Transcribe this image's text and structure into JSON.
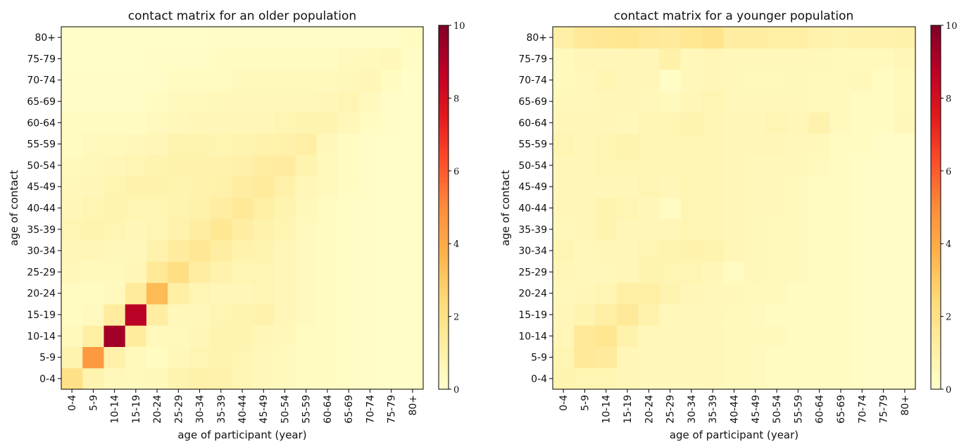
{
  "chart_data": [
    {
      "type": "heatmap",
      "title": "contact matrix for an older population",
      "xlabel": "age of participant (year)",
      "ylabel": "age of contact",
      "x_categories": [
        "0-4",
        "5-9",
        "10-14",
        "15-19",
        "20-24",
        "25-29",
        "30-34",
        "35-39",
        "40-44",
        "45-49",
        "50-54",
        "55-59",
        "60-64",
        "65-69",
        "70-74",
        "75-79",
        "80+"
      ],
      "y_categories": [
        "0-4",
        "5-9",
        "10-14",
        "15-19",
        "20-24",
        "25-29",
        "30-34",
        "35-39",
        "40-44",
        "45-49",
        "50-54",
        "55-59",
        "60-64",
        "65-69",
        "70-74",
        "75-79",
        "80+"
      ],
      "colorbar": {
        "min": 0,
        "max": 10,
        "ticks": [
          0,
          2,
          4,
          6,
          8,
          10
        ],
        "colormap": "YlOrRd"
      },
      "matrix_note": "rows listed from age of contact 0-4 (bottom) to 80+ (top); columns in participant age order",
      "values": [
        [
          2.0,
          0.8,
          0.5,
          0.4,
          0.5,
          0.8,
          1.0,
          0.9,
          0.7,
          0.5,
          0.4,
          0.3,
          0.3,
          0.2,
          0.2,
          0.1,
          0.1
        ],
        [
          0.8,
          4.6,
          1.0,
          0.4,
          0.3,
          0.5,
          0.7,
          0.8,
          0.7,
          0.5,
          0.4,
          0.3,
          0.3,
          0.2,
          0.2,
          0.1,
          0.1
        ],
        [
          0.4,
          1.1,
          9.3,
          1.3,
          0.4,
          0.4,
          0.6,
          0.8,
          0.8,
          0.6,
          0.5,
          0.3,
          0.3,
          0.2,
          0.2,
          0.1,
          0.1
        ],
        [
          0.3,
          0.4,
          1.3,
          8.8,
          1.2,
          0.5,
          0.5,
          0.7,
          0.8,
          0.9,
          0.6,
          0.4,
          0.3,
          0.2,
          0.2,
          0.1,
          0.1
        ],
        [
          0.3,
          0.3,
          0.4,
          1.4,
          3.5,
          1.1,
          0.7,
          0.6,
          0.6,
          0.7,
          0.6,
          0.4,
          0.3,
          0.2,
          0.2,
          0.1,
          0.1
        ],
        [
          0.5,
          0.4,
          0.4,
          0.6,
          1.5,
          2.1,
          1.2,
          0.9,
          0.7,
          0.7,
          0.6,
          0.4,
          0.3,
          0.2,
          0.2,
          0.1,
          0.1
        ],
        [
          0.6,
          0.6,
          0.5,
          0.5,
          0.9,
          1.3,
          1.6,
          1.2,
          0.9,
          0.8,
          0.6,
          0.4,
          0.3,
          0.2,
          0.2,
          0.1,
          0.1
        ],
        [
          0.7,
          0.8,
          0.7,
          0.6,
          0.7,
          0.9,
          1.2,
          1.6,
          1.2,
          0.9,
          0.7,
          0.4,
          0.3,
          0.2,
          0.2,
          0.1,
          0.1
        ],
        [
          0.6,
          0.7,
          0.8,
          0.7,
          0.7,
          0.8,
          1.0,
          1.2,
          1.5,
          1.1,
          0.8,
          0.5,
          0.3,
          0.2,
          0.2,
          0.1,
          0.1
        ],
        [
          0.5,
          0.6,
          0.7,
          0.9,
          0.9,
          0.8,
          0.9,
          1.0,
          1.2,
          1.4,
          1.0,
          0.6,
          0.4,
          0.3,
          0.2,
          0.1,
          0.1
        ],
        [
          0.4,
          0.5,
          0.6,
          0.7,
          0.8,
          0.9,
          0.9,
          0.9,
          1.0,
          1.2,
          1.3,
          0.8,
          0.4,
          0.3,
          0.2,
          0.1,
          0.1
        ],
        [
          0.3,
          0.4,
          0.4,
          0.5,
          0.6,
          0.8,
          0.8,
          0.7,
          0.8,
          0.9,
          1.0,
          1.1,
          0.5,
          0.3,
          0.2,
          0.1,
          0.1
        ],
        [
          0.3,
          0.3,
          0.3,
          0.3,
          0.4,
          0.5,
          0.6,
          0.6,
          0.6,
          0.6,
          0.7,
          0.8,
          0.8,
          0.5,
          0.3,
          0.2,
          0.1
        ],
        [
          0.2,
          0.2,
          0.2,
          0.2,
          0.3,
          0.4,
          0.4,
          0.5,
          0.5,
          0.5,
          0.5,
          0.5,
          0.6,
          0.7,
          0.4,
          0.2,
          0.1
        ],
        [
          0.2,
          0.2,
          0.2,
          0.2,
          0.2,
          0.3,
          0.3,
          0.3,
          0.4,
          0.4,
          0.4,
          0.4,
          0.4,
          0.5,
          0.6,
          0.3,
          0.1
        ],
        [
          0.1,
          0.1,
          0.1,
          0.1,
          0.2,
          0.2,
          0.2,
          0.3,
          0.3,
          0.3,
          0.3,
          0.3,
          0.3,
          0.4,
          0.4,
          0.5,
          0.2
        ],
        [
          0.1,
          0.1,
          0.1,
          0.1,
          0.1,
          0.1,
          0.1,
          0.2,
          0.2,
          0.2,
          0.2,
          0.2,
          0.2,
          0.2,
          0.2,
          0.2,
          0.3
        ]
      ]
    },
    {
      "type": "heatmap",
      "title": "contact matrix for a younger population",
      "xlabel": "age of participant (year)",
      "ylabel": "age of contact",
      "x_categories": [
        "0-4",
        "5-9",
        "10-14",
        "15-19",
        "20-24",
        "25-29",
        "30-34",
        "35-39",
        "40-44",
        "45-49",
        "50-54",
        "55-59",
        "60-64",
        "65-69",
        "70-74",
        "75-79",
        "80+"
      ],
      "y_categories": [
        "0-4",
        "5-9",
        "10-14",
        "15-19",
        "20-24",
        "25-29",
        "30-34",
        "35-39",
        "40-44",
        "45-49",
        "50-54",
        "55-59",
        "60-64",
        "65-69",
        "70-74",
        "75-79",
        "80+"
      ],
      "colorbar": {
        "min": 0,
        "max": 10,
        "ticks": [
          0,
          2,
          4,
          6,
          8,
          10
        ],
        "colormap": "YlOrRd"
      },
      "matrix_note": "rows listed from age of contact 0-4 (bottom) to 80+ (top); columns in participant age order",
      "values": [
        [
          0.8,
          0.7,
          0.7,
          0.6,
          0.5,
          0.5,
          0.5,
          0.5,
          0.4,
          0.4,
          0.3,
          0.3,
          0.3,
          0.3,
          0.2,
          0.2,
          0.2
        ],
        [
          0.7,
          1.5,
          1.4,
          0.6,
          0.5,
          0.5,
          0.5,
          0.5,
          0.4,
          0.4,
          0.3,
          0.3,
          0.3,
          0.3,
          0.2,
          0.2,
          0.2
        ],
        [
          0.6,
          1.5,
          1.7,
          0.9,
          0.5,
          0.5,
          0.5,
          0.5,
          0.4,
          0.4,
          0.4,
          0.3,
          0.3,
          0.3,
          0.2,
          0.2,
          0.2
        ],
        [
          0.6,
          0.8,
          1.1,
          1.5,
          0.9,
          0.5,
          0.5,
          0.5,
          0.4,
          0.4,
          0.3,
          0.3,
          0.3,
          0.3,
          0.2,
          0.2,
          0.2
        ],
        [
          0.5,
          0.6,
          0.7,
          1.1,
          1.1,
          0.8,
          0.6,
          0.5,
          0.5,
          0.4,
          0.4,
          0.3,
          0.3,
          0.3,
          0.2,
          0.2,
          0.2
        ],
        [
          0.6,
          0.5,
          0.5,
          0.6,
          0.8,
          0.7,
          0.7,
          0.6,
          0.3,
          0.5,
          0.4,
          0.4,
          0.3,
          0.3,
          0.2,
          0.2,
          0.2
        ],
        [
          0.7,
          0.5,
          0.6,
          0.6,
          0.7,
          0.8,
          0.9,
          0.8,
          0.6,
          0.5,
          0.4,
          0.4,
          0.3,
          0.3,
          0.2,
          0.2,
          0.2
        ],
        [
          0.5,
          0.6,
          0.8,
          0.6,
          0.6,
          0.6,
          0.7,
          0.7,
          0.6,
          0.5,
          0.4,
          0.4,
          0.3,
          0.3,
          0.2,
          0.2,
          0.2
        ],
        [
          0.6,
          0.6,
          0.8,
          0.7,
          0.6,
          0.3,
          0.7,
          0.7,
          0.6,
          0.5,
          0.5,
          0.4,
          0.3,
          0.3,
          0.2,
          0.2,
          0.2
        ],
        [
          0.6,
          0.6,
          0.6,
          0.6,
          0.7,
          0.6,
          0.7,
          0.7,
          0.6,
          0.5,
          0.5,
          0.4,
          0.3,
          0.3,
          0.2,
          0.2,
          0.2
        ],
        [
          0.6,
          0.6,
          0.7,
          0.7,
          0.7,
          0.7,
          0.7,
          0.7,
          0.6,
          0.5,
          0.5,
          0.5,
          0.4,
          0.3,
          0.2,
          0.2,
          0.2
        ],
        [
          0.7,
          0.6,
          0.7,
          0.8,
          0.7,
          0.7,
          0.7,
          0.7,
          0.6,
          0.6,
          0.6,
          0.5,
          0.5,
          0.3,
          0.3,
          0.2,
          0.2
        ],
        [
          0.6,
          0.6,
          0.6,
          0.5,
          0.7,
          0.7,
          0.8,
          0.7,
          0.6,
          0.6,
          0.7,
          0.6,
          0.9,
          0.4,
          0.3,
          0.3,
          0.5
        ],
        [
          0.5,
          0.5,
          0.6,
          0.6,
          0.5,
          0.4,
          0.6,
          0.7,
          0.5,
          0.5,
          0.5,
          0.5,
          0.4,
          0.4,
          0.3,
          0.3,
          0.4
        ],
        [
          0.4,
          0.5,
          0.7,
          0.6,
          0.6,
          0.2,
          0.5,
          0.6,
          0.5,
          0.4,
          0.4,
          0.5,
          0.4,
          0.4,
          0.5,
          0.3,
          0.4
        ],
        [
          0.4,
          0.6,
          0.6,
          0.6,
          0.6,
          1.0,
          0.5,
          0.6,
          0.5,
          0.5,
          0.5,
          0.5,
          0.5,
          0.4,
          0.4,
          0.4,
          0.6
        ],
        [
          1.1,
          1.5,
          1.6,
          1.7,
          1.5,
          1.4,
          1.6,
          1.8,
          1.2,
          1.2,
          1.1,
          1.1,
          0.9,
          0.8,
          0.9,
          0.9,
          1.0
        ]
      ]
    }
  ]
}
